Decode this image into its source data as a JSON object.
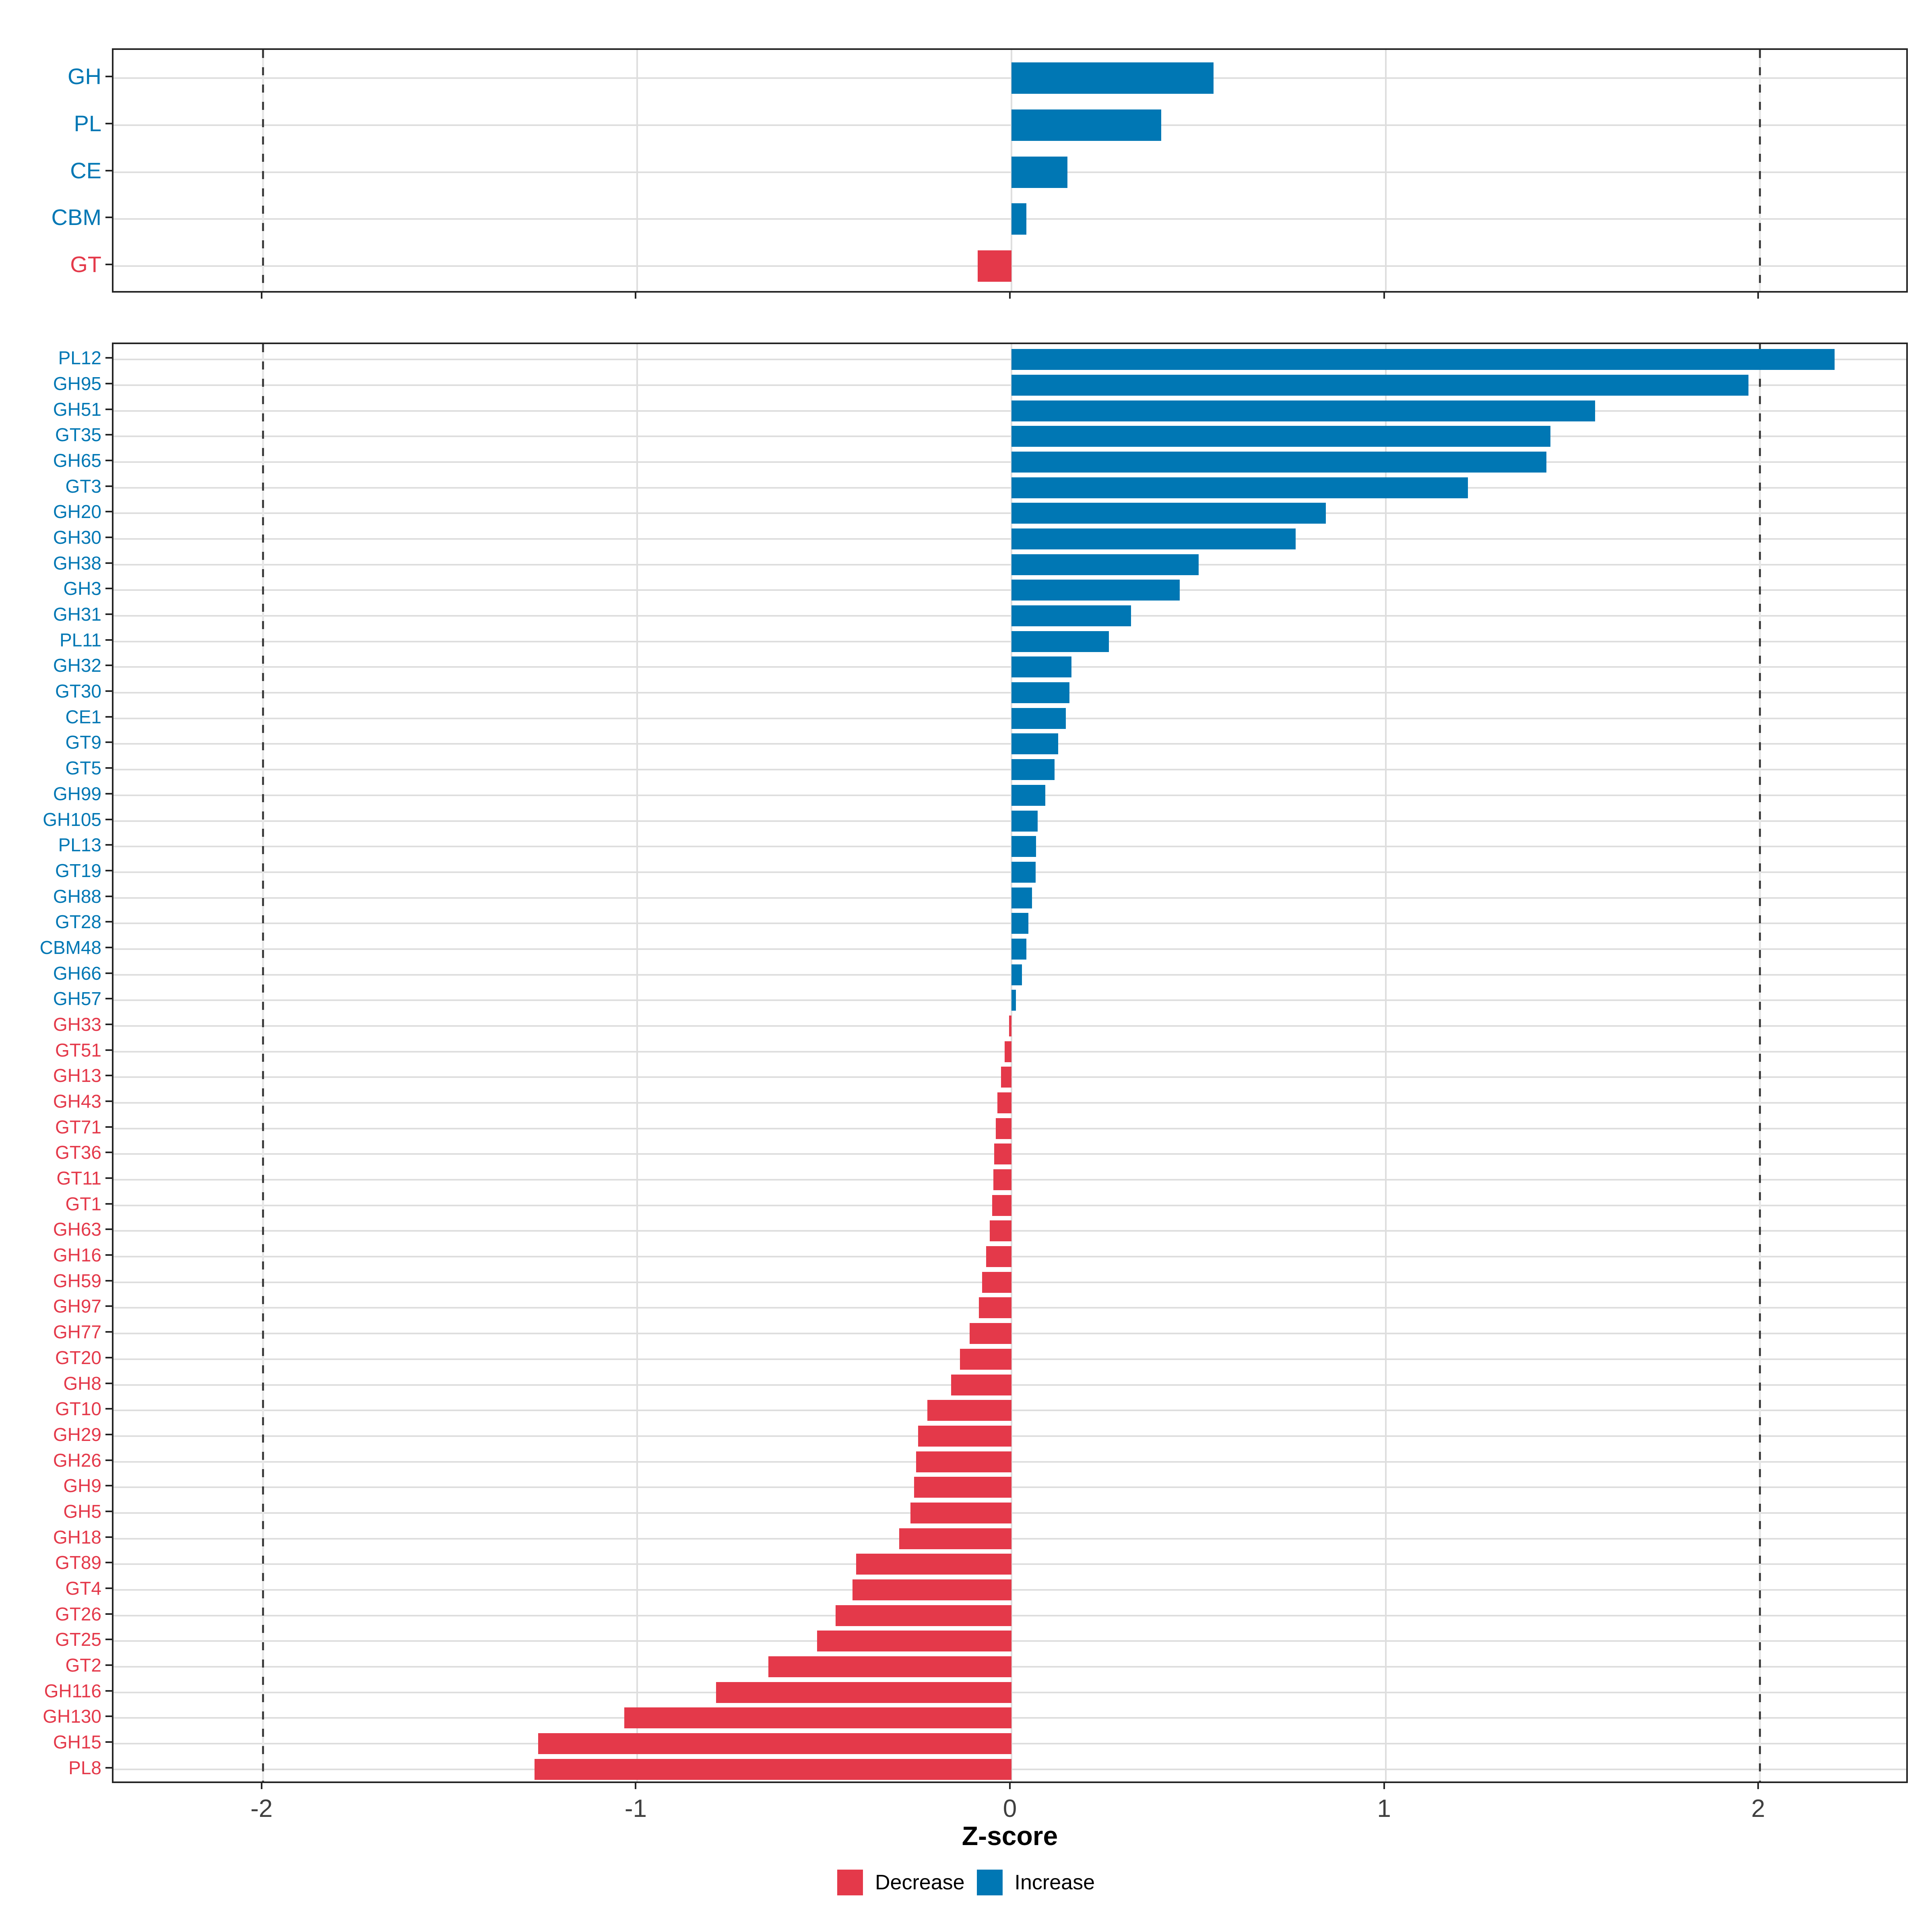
{
  "xlabel": "Z-score",
  "legend": {
    "decrease_label": "Decrease",
    "increase_label": "Increase"
  },
  "colors": {
    "increase": "#0077b4",
    "decrease": "#e4394a",
    "grid_major": "#dedede",
    "dashed_line": "#3f3f3f",
    "dashed_base": "#e6e6e6",
    "panel_border": "#242424",
    "axis_tick_text": "#404040",
    "axis_title_text": "#000000"
  },
  "axis": {
    "xlim": [
      -2.4,
      2.4
    ],
    "tick_values": [
      -2,
      -1,
      0,
      1,
      2
    ],
    "tick_labels": [
      "-2",
      "-1",
      "0",
      "1",
      "2"
    ],
    "major_gridline_values": [
      -1,
      0,
      1
    ],
    "dashed_line_values": [
      -2,
      2
    ]
  },
  "chart_data": [
    {
      "type": "bar",
      "orientation": "horizontal",
      "panel": "category-summary",
      "categories": [
        "GH",
        "PL",
        "CE",
        "CBM",
        "GT"
      ],
      "values": [
        0.54,
        0.4,
        0.15,
        0.04,
        -0.09
      ],
      "xlabel": "Z-score",
      "xlim": [
        -2.4,
        2.4
      ],
      "grid": true,
      "legend_position": "none"
    },
    {
      "type": "bar",
      "orientation": "horizontal",
      "panel": "family-detail",
      "categories": [
        "PL12",
        "GH95",
        "GH51",
        "GT35",
        "GH65",
        "GT3",
        "GH20",
        "GH30",
        "GH38",
        "GH3",
        "GH31",
        "PL11",
        "GH32",
        "GT30",
        "CE1",
        "GT9",
        "GT5",
        "GH99",
        "GH105",
        "PL13",
        "GT19",
        "GH88",
        "GT28",
        "CBM48",
        "GH66",
        "GH57",
        "GH33",
        "GT51",
        "GH13",
        "GH43",
        "GT71",
        "GT36",
        "GT11",
        "GT1",
        "GH63",
        "GH16",
        "GH59",
        "GH97",
        "GH77",
        "GT20",
        "GH8",
        "GT10",
        "GH29",
        "GH26",
        "GH9",
        "GH5",
        "GH18",
        "GT89",
        "GT4",
        "GT26",
        "GT25",
        "GT2",
        "GH116",
        "GH130",
        "GH15",
        "PL8"
      ],
      "values": [
        2.2,
        1.97,
        1.56,
        1.44,
        1.43,
        1.22,
        0.84,
        0.76,
        0.5,
        0.45,
        0.32,
        0.26,
        0.16,
        0.155,
        0.145,
        0.125,
        0.115,
        0.09,
        0.07,
        0.066,
        0.065,
        0.055,
        0.045,
        0.04,
        0.028,
        0.012,
        -0.006,
        -0.018,
        -0.028,
        -0.038,
        -0.042,
        -0.046,
        -0.048,
        -0.052,
        -0.058,
        -0.068,
        -0.079,
        -0.087,
        -0.112,
        -0.138,
        -0.161,
        -0.225,
        -0.25,
        -0.255,
        -0.26,
        -0.27,
        -0.3,
        -0.415,
        -0.425,
        -0.47,
        -0.52,
        -0.65,
        -0.79,
        -1.035,
        -1.265,
        -1.275
      ],
      "xlabel": "Z-score",
      "xlim": [
        -2.4,
        2.4
      ],
      "grid": true,
      "legend_position": "bottom"
    }
  ]
}
